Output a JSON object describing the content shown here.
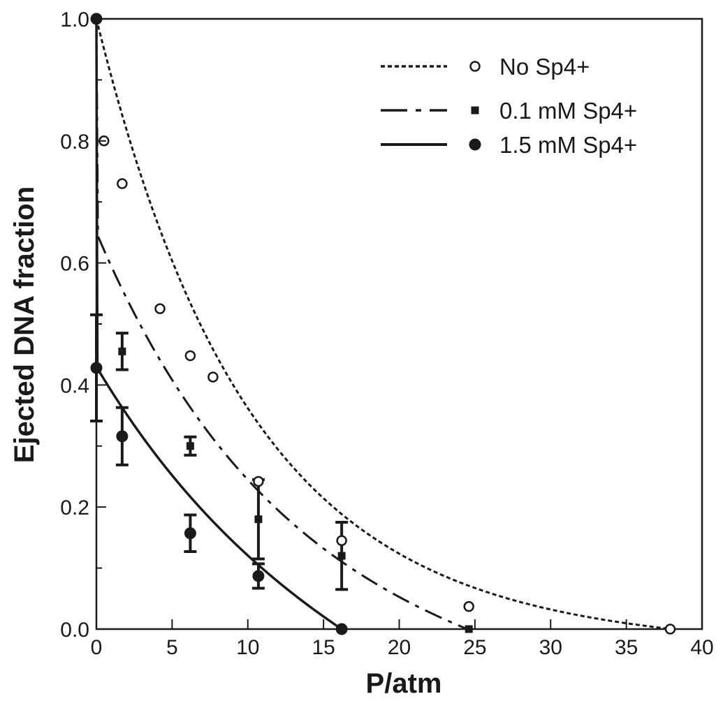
{
  "chart_data": {
    "type": "scatter",
    "title": "",
    "xlabel": "P/atm",
    "ylabel": "Ejected DNA fraction",
    "xlim": [
      0,
      40
    ],
    "ylim": [
      0,
      1
    ],
    "x_ticks": [
      "0",
      "5",
      "10",
      "15",
      "20",
      "25",
      "30",
      "35",
      "40"
    ],
    "y_ticks": [
      "0.0",
      "0.2",
      "0.4",
      "0.6",
      "0.8",
      "1.0"
    ],
    "grid": false,
    "legend_position": "top-right",
    "series": [
      {
        "name": "No Sp4+",
        "marker": "open-circle",
        "line_style": "dotted",
        "points": [
          {
            "x": 0,
            "y": 1.0
          },
          {
            "x": 0.5,
            "y": 0.8
          },
          {
            "x": 1.7,
            "y": 0.73
          },
          {
            "x": 4.2,
            "y": 0.525
          },
          {
            "x": 6.2,
            "y": 0.448
          },
          {
            "x": 7.7,
            "y": 0.413
          },
          {
            "x": 10.7,
            "y": 0.242
          },
          {
            "x": 16.2,
            "y": 0.145
          },
          {
            "x": 24.6,
            "y": 0.037
          },
          {
            "x": 37.9,
            "y": 0.0
          }
        ],
        "fit": {
          "A": 1.0,
          "k": 0.1,
          "x_end": 38
        }
      },
      {
        "name": "0.1 mM Sp4+",
        "marker": "filled-square",
        "line_style": "dash-dot",
        "points": [
          {
            "x": 0,
            "y": 1.0
          },
          {
            "x": 1.7,
            "y": 0.455,
            "err": 0.03
          },
          {
            "x": 6.2,
            "y": 0.3,
            "err": 0.015
          },
          {
            "x": 10.7,
            "y": 0.18,
            "err": 0.065
          },
          {
            "x": 16.2,
            "y": 0.12,
            "err": 0.055
          },
          {
            "x": 24.6,
            "y": 0.0
          }
        ],
        "fit": {
          "A": 0.65,
          "k": 0.085,
          "x_end": 24.5
        }
      },
      {
        "name": "1.5 mM Sp4+",
        "marker": "filled-circle",
        "line_style": "solid",
        "points": [
          {
            "x": 0,
            "y": 1.0
          },
          {
            "x": 0,
            "y": 0.428,
            "err": 0.087
          },
          {
            "x": 1.7,
            "y": 0.316,
            "err": 0.047
          },
          {
            "x": 6.2,
            "y": 0.157,
            "err": 0.03
          },
          {
            "x": 10.7,
            "y": 0.087,
            "err": 0.02
          },
          {
            "x": 16.2,
            "y": 0.0
          }
        ],
        "fit": {
          "A": 0.43,
          "k": 0.08,
          "x_end": 16.2
        }
      }
    ]
  }
}
